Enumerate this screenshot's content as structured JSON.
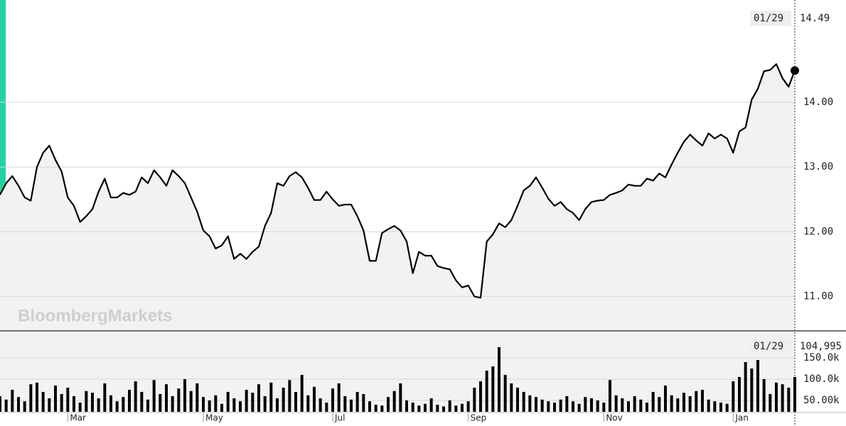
{
  "watermark": "BloombergMarkets",
  "chart_data": [
    {
      "type": "line",
      "color": "#000000",
      "categories": [
        null,
        null,
        null,
        null,
        null,
        null,
        null,
        null,
        null,
        null,
        null,
        "Mar",
        null,
        null,
        null,
        null,
        null,
        null,
        null,
        null,
        null,
        null,
        null,
        null,
        null,
        null,
        null,
        null,
        null,
        null,
        null,
        null,
        null,
        "May",
        null,
        null,
        null,
        null,
        null,
        null,
        null,
        null,
        null,
        null,
        null,
        null,
        null,
        null,
        null,
        null,
        null,
        null,
        null,
        null,
        "Jul",
        null,
        null,
        null,
        null,
        null,
        null,
        null,
        null,
        null,
        null,
        null,
        null,
        null,
        null,
        null,
        null,
        null,
        null,
        null,
        null,
        null,
        "Sep",
        null,
        null,
        null,
        null,
        null,
        null,
        null,
        null,
        null,
        null,
        null,
        null,
        null,
        null,
        null,
        null,
        null,
        null,
        null,
        null,
        null,
        "Nov",
        null,
        null,
        null,
        null,
        null,
        null,
        null,
        null,
        null,
        null,
        null,
        null,
        null,
        null,
        null,
        null,
        null,
        null,
        null,
        null,
        "Jan",
        null,
        null,
        null,
        null,
        null,
        null,
        null,
        null,
        null,
        null
      ],
      "values": [
        12.57,
        12.75,
        12.86,
        12.71,
        12.53,
        12.48,
        13.0,
        13.22,
        13.33,
        13.11,
        12.93,
        12.53,
        12.4,
        12.15,
        12.24,
        12.35,
        12.62,
        12.82,
        12.53,
        12.53,
        12.6,
        12.57,
        12.62,
        12.84,
        12.75,
        12.95,
        12.84,
        12.71,
        12.95,
        12.86,
        12.75,
        12.53,
        12.31,
        12.02,
        11.93,
        11.74,
        11.79,
        11.93,
        11.58,
        11.66,
        11.58,
        11.69,
        11.77,
        12.09,
        12.29,
        12.75,
        12.71,
        12.86,
        12.92,
        12.84,
        12.68,
        12.49,
        12.49,
        12.62,
        12.5,
        12.4,
        12.42,
        12.42,
        12.24,
        12.02,
        11.55,
        11.55,
        11.98,
        12.04,
        12.09,
        12.02,
        11.85,
        11.36,
        11.69,
        11.63,
        11.63,
        11.47,
        11.44,
        11.42,
        11.25,
        11.14,
        11.17,
        11.0,
        10.98,
        11.85,
        11.96,
        12.13,
        12.07,
        12.18,
        12.4,
        12.64,
        12.71,
        12.84,
        12.68,
        12.51,
        12.4,
        12.46,
        12.35,
        12.29,
        12.18,
        12.35,
        12.46,
        12.48,
        12.49,
        12.57,
        12.6,
        12.64,
        12.73,
        12.71,
        12.71,
        12.82,
        12.79,
        12.9,
        12.84,
        13.04,
        13.22,
        13.39,
        13.5,
        13.41,
        13.33,
        13.52,
        13.44,
        13.5,
        13.44,
        13.22,
        13.55,
        13.61,
        14.04,
        14.21,
        14.48,
        14.5,
        14.59,
        14.37,
        14.24,
        14.49
      ],
      "ylim": [
        10.48,
        15.58
      ],
      "yticks": [
        {
          "value": 14,
          "label": "14.00"
        },
        {
          "value": 13,
          "label": "13.00"
        },
        {
          "value": 12,
          "label": "12.00"
        },
        {
          "value": 11,
          "label": "11.00"
        }
      ],
      "grid": true,
      "readout": {
        "date": "01/29",
        "value": 14.49
      }
    },
    {
      "type": "bar",
      "color": "#000000",
      "values": [
        60000,
        52000,
        75000,
        58000,
        48000,
        88000,
        92000,
        70000,
        55000,
        85000,
        65000,
        80000,
        60000,
        45000,
        72000,
        68000,
        55000,
        90000,
        62000,
        48000,
        58000,
        75000,
        95000,
        70000,
        52000,
        98000,
        65000,
        88000,
        60000,
        78000,
        100000,
        72000,
        90000,
        58000,
        50000,
        62000,
        42000,
        70000,
        55000,
        48000,
        75000,
        68000,
        88000,
        60000,
        92000,
        55000,
        80000,
        98000,
        70000,
        110000,
        62000,
        82000,
        55000,
        45000,
        78000,
        90000,
        60000,
        52000,
        70000,
        65000,
        48000,
        40000,
        38000,
        58000,
        72000,
        90000,
        50000,
        45000,
        38000,
        42000,
        55000,
        40000,
        36000,
        50000,
        38000,
        42000,
        48000,
        80000,
        95000,
        120000,
        130000,
        175000,
        110000,
        90000,
        80000,
        70000,
        62000,
        58000,
        52000,
        48000,
        45000,
        52000,
        60000,
        48000,
        42000,
        58000,
        55000,
        50000,
        45000,
        98000,
        62000,
        55000,
        48000,
        60000,
        52000,
        45000,
        70000,
        58000,
        85000,
        62000,
        55000,
        68000,
        60000,
        72000,
        75000,
        52000,
        48000,
        45000,
        42000,
        95000,
        105000,
        140000,
        125000,
        145000,
        100000,
        65000,
        92000,
        88000,
        80000,
        104995
      ],
      "ylim": [
        23333,
        213333
      ],
      "yticks": [
        {
          "value": 150000,
          "label": "150.0k"
        },
        {
          "value": 100000,
          "label": "100.0k"
        },
        {
          "value": 50000,
          "label": "50.00k"
        }
      ],
      "grid": true,
      "readout": {
        "date": "01/29",
        "value": 104995,
        "label": "104,995"
      }
    }
  ]
}
